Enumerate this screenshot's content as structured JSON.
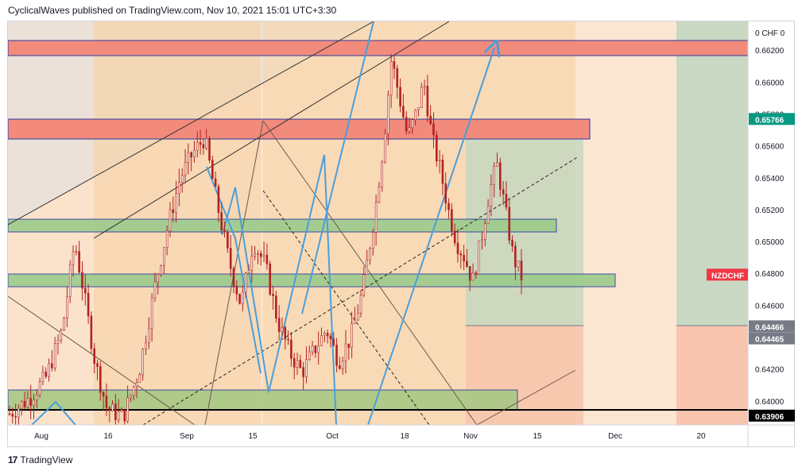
{
  "header": {
    "published_text": "CyclicalWaves published on TradingView.com, Nov 10, 2021 15:01 UTC+3:30"
  },
  "footer": {
    "logo_text": "TradingView"
  },
  "chart_data": {
    "type": "candlestick",
    "symbol": "NZDCHF",
    "currency": "0 CHF 0",
    "y_axis_ticks": [
      "0.66200",
      "0.66000",
      "0.65800",
      "0.65600",
      "0.65400",
      "0.65200",
      "0.65000",
      "0.64800",
      "0.64600",
      "0.64400",
      "0.64200",
      "0.64000"
    ],
    "ylim": [
      0.6385,
      0.6638
    ],
    "x_axis_ticks": [
      "Aug",
      "16",
      "Sep",
      "15",
      "Oct",
      "18",
      "Nov",
      "15",
      "Dec",
      "20"
    ],
    "price_labels": [
      {
        "value": "0.65766",
        "color": "#089981",
        "text_color": "#ffffff"
      },
      {
        "value": "0.64466",
        "color": "#787b86",
        "text_color": "#ffffff"
      },
      {
        "value": "0.64465",
        "color": "#787b86",
        "text_color": "#ffffff"
      },
      {
        "value": "0.63906",
        "color": "#000000",
        "text_color": "#ffffff"
      }
    ],
    "symbol_label": {
      "text": "NZDCHF",
      "color": "#f23645"
    },
    "zones": [
      {
        "kind": "resistance",
        "color": "#f08080",
        "from": 0.6624,
        "to": 0.6634
      },
      {
        "kind": "resistance",
        "color": "#f08080",
        "from": 0.6571,
        "to": 0.6584
      },
      {
        "kind": "support",
        "color": "#9ccf8a",
        "from": 0.6508,
        "to": 0.6517
      },
      {
        "kind": "support",
        "color": "#9ccf8a",
        "from": 0.6473,
        "to": 0.6481
      },
      {
        "kind": "support",
        "color": "#9ccf8a",
        "from": 0.6391,
        "to": 0.6403
      }
    ],
    "position": {
      "entry": 0.64466,
      "stop": 0.63906,
      "target": 0.65766
    },
    "candles_approx": [
      {
        "t": 1,
        "close": 0.6392
      },
      {
        "t": 6,
        "close": 0.6402
      },
      {
        "t": 10,
        "close": 0.6415
      },
      {
        "t": 14,
        "close": 0.6445
      },
      {
        "t": 17,
        "close": 0.65
      },
      {
        "t": 19,
        "close": 0.6472
      },
      {
        "t": 22,
        "close": 0.6425
      },
      {
        "t": 25,
        "close": 0.6395
      },
      {
        "t": 29,
        "close": 0.639
      },
      {
        "t": 33,
        "close": 0.642
      },
      {
        "t": 37,
        "close": 0.6475
      },
      {
        "t": 40,
        "close": 0.651
      },
      {
        "t": 43,
        "close": 0.654
      },
      {
        "t": 46,
        "close": 0.6555
      },
      {
        "t": 49,
        "close": 0.6565
      },
      {
        "t": 52,
        "close": 0.6525
      },
      {
        "t": 55,
        "close": 0.6488
      },
      {
        "t": 58,
        "close": 0.646
      },
      {
        "t": 61,
        "close": 0.65
      },
      {
        "t": 64,
        "close": 0.6485
      },
      {
        "t": 67,
        "close": 0.645
      },
      {
        "t": 70,
        "close": 0.643
      },
      {
        "t": 73,
        "close": 0.6418
      },
      {
        "t": 76,
        "close": 0.6432
      },
      {
        "t": 79,
        "close": 0.6445
      },
      {
        "t": 82,
        "close": 0.6425
      },
      {
        "t": 85,
        "close": 0.644
      },
      {
        "t": 88,
        "close": 0.647
      },
      {
        "t": 91,
        "close": 0.652
      },
      {
        "t": 93,
        "close": 0.656
      },
      {
        "t": 95,
        "close": 0.6615
      },
      {
        "t": 97,
        "close": 0.659
      },
      {
        "t": 99,
        "close": 0.6565
      },
      {
        "t": 101,
        "close": 0.658
      },
      {
        "t": 103,
        "close": 0.66
      },
      {
        "t": 105,
        "close": 0.6565
      },
      {
        "t": 107,
        "close": 0.6545
      },
      {
        "t": 109,
        "close": 0.652
      },
      {
        "t": 111,
        "close": 0.65
      },
      {
        "t": 113,
        "close": 0.649
      },
      {
        "t": 115,
        "close": 0.6475
      },
      {
        "t": 117,
        "close": 0.65
      },
      {
        "t": 119,
        "close": 0.653
      },
      {
        "t": 121,
        "close": 0.6548
      },
      {
        "t": 123,
        "close": 0.652
      },
      {
        "t": 125,
        "close": 0.649
      },
      {
        "t": 127,
        "close": 0.6478
      }
    ]
  }
}
